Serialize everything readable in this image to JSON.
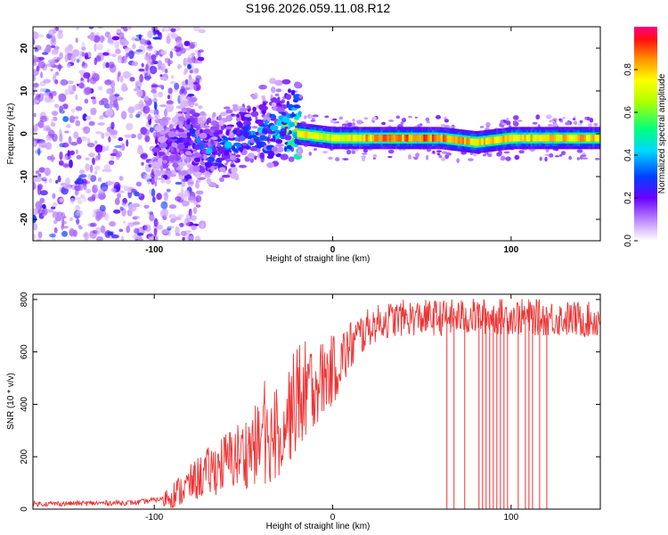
{
  "figure": {
    "title": "S196.2026.059.11.08.R12"
  },
  "chart_data": [
    {
      "type": "heatmap",
      "title": "S196.2026.059.11.08.R12",
      "xlabel": "Height of straight line (km)",
      "ylabel": "Frequency (Hz)",
      "xlim": [
        -168,
        150
      ],
      "ylim": [
        -25,
        25
      ],
      "xticks": [
        -100,
        0,
        100
      ],
      "yticks": [
        -20,
        -10,
        0,
        10,
        20
      ],
      "description_series": [
        {
          "name": "band_center_hz",
          "x": [
            -140,
            -120,
            -100,
            -90,
            -80,
            -70,
            -60,
            -50,
            -40,
            -30,
            -20,
            0,
            20,
            40,
            60,
            80,
            100,
            120,
            150
          ],
          "values": [
            -3,
            -5,
            -4,
            -2,
            0,
            -4,
            -3,
            -1,
            0,
            1,
            0,
            -1,
            -1,
            -1,
            -1,
            -2,
            -1,
            -1,
            -1
          ]
        },
        {
          "name": "peak_amplitude",
          "x": [
            -140,
            -120,
            -100,
            -90,
            -80,
            -70,
            -60,
            -50,
            -40,
            -30,
            -20,
            0,
            20,
            40,
            60,
            80,
            100,
            120,
            150
          ],
          "values": [
            0.1,
            0.15,
            0.2,
            0.25,
            0.3,
            0.35,
            0.35,
            0.4,
            0.4,
            0.45,
            0.85,
            0.75,
            0.9,
            0.95,
            0.95,
            0.85,
            0.85,
            0.85,
            0.9
          ]
        }
      ]
    },
    {
      "type": "line",
      "title": "",
      "xlabel": "Height of straight line (km)",
      "ylabel": "SNR (10 * v/v)",
      "xlim": [
        -168,
        150
      ],
      "ylim": [
        0,
        820
      ],
      "xticks": [
        -100,
        0,
        100
      ],
      "yticks": [
        0,
        200,
        400,
        600,
        800
      ],
      "series": [
        {
          "name": "SNR",
          "color": "#ee3333",
          "x": [
            -168,
            -140,
            -110,
            -95,
            -85,
            -75,
            -65,
            -55,
            -50,
            -45,
            -40,
            -35,
            -30,
            -25,
            -20,
            -15,
            -10,
            -5,
            0,
            5,
            10,
            15,
            20,
            25,
            30,
            40,
            60,
            80,
            100,
            120,
            150
          ],
          "values": [
            20,
            22,
            25,
            40,
            70,
            120,
            160,
            200,
            210,
            240,
            250,
            270,
            300,
            360,
            420,
            460,
            480,
            500,
            530,
            570,
            620,
            660,
            690,
            710,
            720,
            730,
            730,
            735,
            735,
            730,
            720
          ]
        },
        {
          "name": "SNR_dropouts",
          "color": "#ee3333",
          "x": [
            64,
            68,
            74,
            82,
            84,
            86,
            88,
            90,
            92,
            94,
            96,
            98,
            104,
            108,
            110,
            112,
            116,
            120
          ],
          "values": [
            0,
            0,
            0,
            0,
            0,
            0,
            0,
            0,
            0,
            0,
            0,
            0,
            0,
            0,
            0,
            0,
            0,
            0
          ]
        }
      ]
    }
  ],
  "colorbar": {
    "label": "Normalized spectral amplitude",
    "ticks": [
      "0.0",
      "0.2",
      "0.4",
      "0.6",
      "0.8"
    ],
    "tick_values": [
      0.0,
      0.2,
      0.4,
      0.6,
      0.8
    ],
    "range": [
      0,
      1
    ]
  }
}
